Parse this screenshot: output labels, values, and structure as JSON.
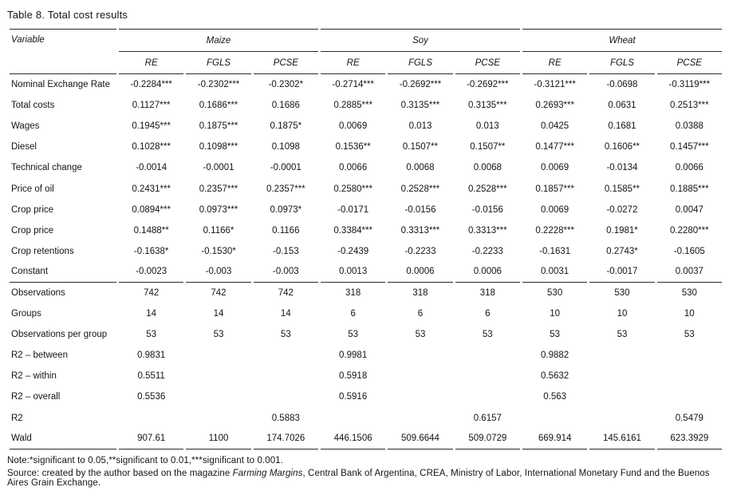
{
  "title": "Table 8. Total cost results",
  "table": {
    "variable_header": "Variable",
    "groups": [
      "Maize",
      "Soy",
      "Wheat"
    ],
    "subheaders": [
      "RE",
      "FGLS",
      "PCSE",
      "RE",
      "FGLS",
      "PCSE",
      "RE",
      "FGLS",
      "PCSE"
    ],
    "sections": [
      {
        "name": "coefficients",
        "rows": [
          {
            "label": "Nominal Exchange Rate",
            "values": [
              "-0.2284***",
              "-0.2302***",
              "-0.2302*",
              "-0.2714***",
              "-0.2692***",
              "-0.2692***",
              "-0.3121***",
              "-0.0698",
              "-0.3119***"
            ]
          },
          {
            "label": "Total costs",
            "values": [
              "0.1127***",
              "0.1686***",
              "0.1686",
              "0.2885***",
              "0.3135***",
              "0.3135***",
              "0.2693***",
              "0.0631",
              "0.2513***"
            ]
          },
          {
            "label": "Wages",
            "values": [
              "0.1945***",
              "0.1875***",
              "0.1875*",
              "0.0069",
              "0.013",
              "0.013",
              "0.0425",
              "0.1681",
              "0.0388"
            ]
          },
          {
            "label": "Diesel",
            "values": [
              "0.1028***",
              "0.1098***",
              "0.1098",
              "0.1536**",
              "0.1507**",
              "0.1507**",
              "0.1477***",
              "0.1606**",
              "0.1457***"
            ]
          },
          {
            "label": "Technical change",
            "values": [
              "-0.0014",
              "-0.0001",
              "-0.0001",
              "0.0066",
              "0.0068",
              "0.0068",
              "0.0069",
              "-0.0134",
              "0.0066"
            ]
          },
          {
            "label": "Price of oil",
            "values": [
              "0.2431***",
              "0.2357***",
              "0.2357***",
              "0.2580***",
              "0.2528***",
              "0.2528***",
              "0.1857***",
              "0.1585**",
              "0.1885***"
            ]
          },
          {
            "label": "Crop price",
            "values": [
              "0.0894***",
              "0.0973***",
              "0.0973*",
              "-0.0171",
              "-0.0156",
              "-0.0156",
              "0.0069",
              "-0.0272",
              "0.0047"
            ]
          },
          {
            "label": "Crop price",
            "values": [
              "0.1488**",
              "0.1166*",
              "0.1166",
              "0.3384***",
              "0.3313***",
              "0.3313***",
              "0.2228***",
              "0.1981*",
              "0.2280***"
            ]
          },
          {
            "label": "Crop retentions",
            "values": [
              "-0.1638*",
              "-0.1530*",
              "-0.153",
              "-0.2439",
              "-0.2233",
              "-0.2233",
              "-0.1631",
              "0.2743*",
              "-0.1605"
            ]
          },
          {
            "label": "Constant",
            "values": [
              "-0.0023",
              "-0.003",
              "-0.003",
              "0.0013",
              "0.0006",
              "0.0006",
              "0.0031",
              "-0.0017",
              "0.0037"
            ]
          }
        ]
      },
      {
        "name": "statistics",
        "rows": [
          {
            "label": "Observations",
            "values": [
              "742",
              "742",
              "742",
              "318",
              "318",
              "318",
              "530",
              "530",
              "530"
            ]
          },
          {
            "label": "Groups",
            "values": [
              "14",
              "14",
              "14",
              "6",
              "6",
              "6",
              "10",
              "10",
              "10"
            ]
          },
          {
            "label": "Observations per group",
            "values": [
              "53",
              "53",
              "53",
              "53",
              "53",
              "53",
              "53",
              "53",
              "53"
            ]
          },
          {
            "label": "R2 – between",
            "values": [
              "0.9831",
              "",
              "",
              "0.9981",
              "",
              "",
              "0.9882",
              "",
              ""
            ]
          },
          {
            "label": "R2 – within",
            "values": [
              "0.5511",
              "",
              "",
              "0.5918",
              "",
              "",
              "0.5632",
              "",
              ""
            ]
          },
          {
            "label": "R2 – overall",
            "values": [
              "0.5536",
              "",
              "",
              "0.5916",
              "",
              "",
              "0.563",
              "",
              ""
            ]
          },
          {
            "label": "R2",
            "values": [
              "",
              "",
              "0.5883",
              "",
              "",
              "0.6157",
              "",
              "",
              "0.5479"
            ]
          },
          {
            "label": "Wald",
            "values": [
              "907.61",
              "1100",
              "174.7026",
              "446.1506",
              "509.6644",
              "509.0729",
              "669.914",
              "145.6161",
              "623.3929"
            ]
          }
        ]
      }
    ]
  },
  "notes": {
    "note": "Note:*significant to 0.05,**significant to 0.01,***significant to 0.001.",
    "source_prefix": "Source: created by the author based on the magazine ",
    "source_italic": "Farming Margins",
    "source_suffix": ", Central Bank of Argentina, CREA, Ministry of Labor, International Monetary Fund and the Buenos Aires Grain Exchange."
  }
}
